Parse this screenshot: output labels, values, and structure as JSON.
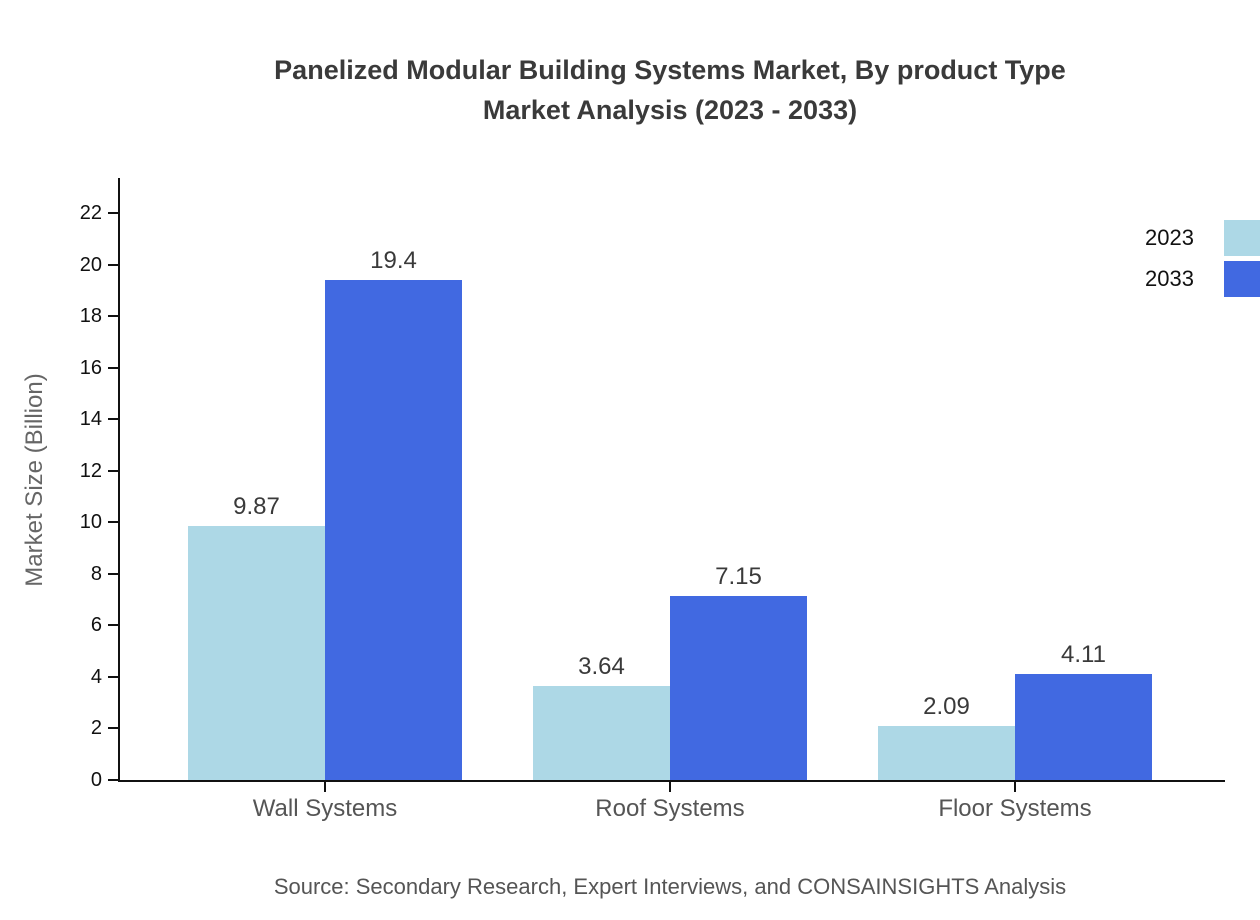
{
  "title": {
    "line1": "Panelized Modular Building Systems Market, By product Type",
    "line2": "Market Analysis (2023 - 2033)"
  },
  "y_axis_title": "Market Size (Billion)",
  "source": "Source: Secondary Research, Expert Interviews, and CONSAINSIGHTS Analysis",
  "colors": {
    "series_2023": "#ADD8E6",
    "series_2033": "#4169E1",
    "axis": "#111111",
    "title_text": "#3a3a3a",
    "muted_text": "#555555"
  },
  "legend": [
    {
      "label": "2023",
      "color": "#ADD8E6"
    },
    {
      "label": "2033",
      "color": "#4169E1"
    }
  ],
  "chart_data": {
    "type": "bar",
    "title": "Panelized Modular Building Systems Market, By product Type Market Analysis (2023 - 2033)",
    "categories": [
      "Wall Systems",
      "Roof Systems",
      "Floor Systems"
    ],
    "series": [
      {
        "name": "2023",
        "color": "#ADD8E6",
        "values": [
          9.87,
          3.64,
          2.09
        ],
        "labels": [
          "9.87",
          "3.64",
          "2.09"
        ]
      },
      {
        "name": "2033",
        "color": "#4169E1",
        "values": [
          19.4,
          7.15,
          4.11
        ],
        "labels": [
          "19.4",
          "7.15",
          "4.11"
        ]
      }
    ],
    "xlabel": "",
    "ylabel": "Market Size (Billion)",
    "ylim": [
      0,
      23.3
    ],
    "yticks": [
      0,
      2,
      4,
      6,
      8,
      10,
      12,
      14,
      16,
      18,
      20,
      22
    ],
    "grid": false,
    "legend_position": "upper right"
  }
}
